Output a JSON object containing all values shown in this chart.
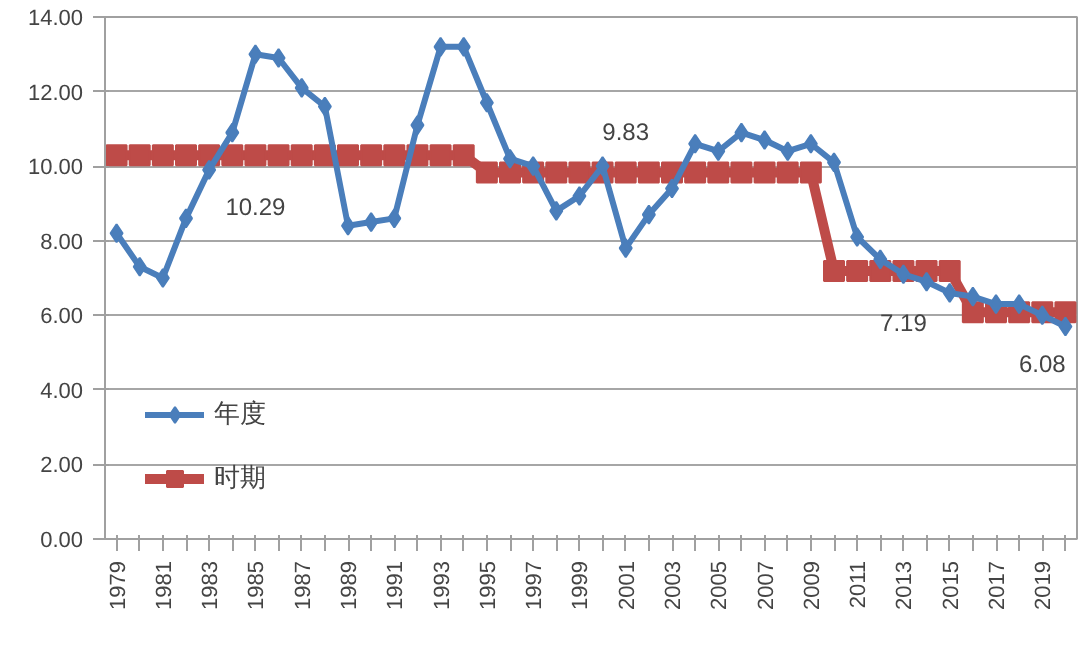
{
  "chart_data": {
    "type": "line",
    "categories": [
      "1979",
      null,
      "1981",
      null,
      "1983",
      null,
      "1985",
      null,
      "1987",
      null,
      "1989",
      null,
      "1991",
      null,
      "1993",
      null,
      "1995",
      null,
      "1997",
      null,
      "1999",
      null,
      "2001",
      null,
      "2003",
      null,
      "2005",
      null,
      "2007",
      null,
      "2009",
      null,
      "2011",
      null,
      "2013",
      null,
      "2015",
      null,
      "2017",
      null,
      "2019",
      null
    ],
    "series": [
      {
        "name": "年度",
        "color": "#4a7ebb",
        "marker": "diamond",
        "values": [
          8.2,
          7.3,
          7.0,
          8.6,
          9.9,
          10.9,
          13.0,
          12.9,
          12.1,
          11.6,
          8.4,
          8.5,
          8.6,
          11.1,
          13.2,
          13.2,
          11.7,
          10.2,
          10.0,
          8.8,
          9.2,
          10.0,
          7.8,
          8.7,
          9.4,
          10.6,
          10.4,
          10.9,
          10.7,
          10.4,
          10.6,
          10.1,
          8.1,
          7.5,
          7.1,
          6.9,
          6.6,
          6.5,
          6.3,
          6.3,
          6.0,
          5.7
        ]
      },
      {
        "name": "时期",
        "color": "#be4b48",
        "marker": "square",
        "values": [
          10.29,
          10.29,
          10.29,
          10.29,
          10.29,
          10.29,
          10.29,
          10.29,
          10.29,
          10.29,
          10.29,
          10.29,
          10.29,
          10.29,
          10.29,
          10.29,
          9.83,
          9.83,
          9.83,
          9.83,
          9.83,
          9.83,
          9.83,
          9.83,
          9.83,
          9.83,
          9.83,
          9.83,
          9.83,
          9.83,
          9.83,
          7.19,
          7.19,
          7.19,
          7.19,
          7.19,
          7.19,
          6.08,
          6.08,
          6.08,
          6.08,
          6.08
        ]
      }
    ],
    "ylim": [
      0,
      14
    ],
    "yticks": [
      {
        "value": 0,
        "label": "0.00"
      },
      {
        "value": 2,
        "label": "2.00"
      },
      {
        "value": 4,
        "label": "4.00"
      },
      {
        "value": 6,
        "label": "6.00"
      },
      {
        "value": 8,
        "label": "8.00"
      },
      {
        "value": 10,
        "label": "10.00"
      },
      {
        "value": 12,
        "label": "12.00"
      },
      {
        "value": 14,
        "label": "14.00"
      }
    ],
    "grid": "y",
    "legend": "left",
    "annotations": [
      {
        "text": "10.29",
        "x": "1985",
        "y": 10.29
      },
      {
        "text": "9.83",
        "x": "2001",
        "y": 9.83
      },
      {
        "text": "7.19",
        "x": "2013",
        "y": 7.19
      },
      {
        "text": "6.08",
        "x": "2019",
        "y": 6.08
      }
    ]
  }
}
